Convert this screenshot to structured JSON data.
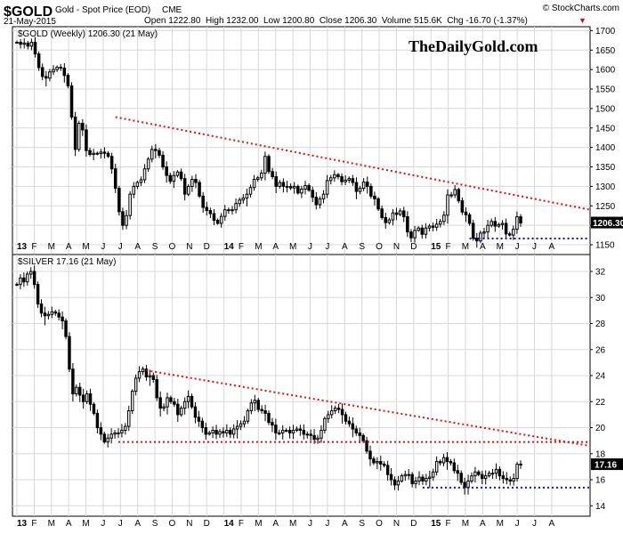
{
  "header": {
    "symbol": "$GOLD",
    "description": "Gold - Spot Price (EOD)",
    "exchange": "CME",
    "watermark": "© StockCharts.com",
    "date": "21-May-2015",
    "ohlc_label": "Open 1222.80  High 1232.00  Low 1200.80  Close 1206.30  Volume 515.6K  Chg -16.70 (-1.37%)",
    "chg_arrow": "▼",
    "brand": "TheDailyGold.com"
  },
  "colors": {
    "trendline": "#e01010",
    "support": "#1010c8",
    "candle": "#000000",
    "grid": "#d8d8d8",
    "label_box": "#000000"
  },
  "chart_data": [
    {
      "type": "candlestick",
      "title": "$GOLD (Weekly) 1206.30 (21 May)",
      "last_value": "1206.30",
      "ylim": [
        1125,
        1710
      ],
      "y_ticks": [
        1150,
        1200,
        1250,
        1300,
        1350,
        1400,
        1450,
        1500,
        1550,
        1600,
        1650,
        1700
      ],
      "x_tick_labels": [
        "13",
        "F",
        "M",
        "A",
        "M",
        "J",
        "J",
        "A",
        "S",
        "O",
        "N",
        "D",
        "14",
        "F",
        "M",
        "A",
        "M",
        "J",
        "J",
        "A",
        "S",
        "O",
        "N",
        "D",
        "15",
        "F",
        "M",
        "A",
        "M",
        "J",
        "J",
        "A"
      ],
      "closes": [
        1670,
        1665,
        1668,
        1660,
        1670,
        1640,
        1605,
        1582,
        1578,
        1594,
        1600,
        1606,
        1604,
        1585,
        1558,
        1478,
        1395,
        1462,
        1445,
        1392,
        1382,
        1385,
        1384,
        1388,
        1385,
        1377,
        1345,
        1295,
        1235,
        1200,
        1225,
        1280,
        1300,
        1310,
        1317,
        1345,
        1370,
        1395,
        1392,
        1380,
        1350,
        1328,
        1313,
        1328,
        1337,
        1320,
        1280,
        1300,
        1318,
        1310,
        1275,
        1246,
        1238,
        1230,
        1213,
        1205,
        1223,
        1240,
        1238,
        1240,
        1256,
        1265,
        1270,
        1280,
        1297,
        1318,
        1322,
        1334,
        1377,
        1338,
        1325,
        1300,
        1310,
        1300,
        1300,
        1296,
        1300,
        1283,
        1293,
        1302,
        1290,
        1272,
        1253,
        1268,
        1280,
        1315,
        1322,
        1330,
        1325,
        1312,
        1316,
        1320,
        1310,
        1287,
        1295,
        1311,
        1300,
        1275,
        1268,
        1242,
        1220,
        1207,
        1214,
        1232,
        1228,
        1237,
        1222,
        1183,
        1168,
        1187,
        1193,
        1177,
        1193,
        1198,
        1195,
        1203,
        1210,
        1226,
        1278,
        1278,
        1292,
        1263,
        1234,
        1227,
        1205,
        1167,
        1160,
        1180,
        1183,
        1200,
        1210,
        1198,
        1202,
        1205,
        1178,
        1175,
        1190,
        1222,
        1206
      ],
      "trendline": {
        "start": {
          "x": 27,
          "y": 1478
        },
        "end": {
          "x": 167,
          "y": 1240
        }
      },
      "support": {
        "start": {
          "x": 124,
          "y": 1166
        },
        "end": {
          "x": 167,
          "y": 1166
        }
      }
    },
    {
      "type": "candlestick",
      "title": "$SILVER 17.16 (21 May)",
      "last_value": "17.16",
      "ylim": [
        13.2,
        33.3
      ],
      "y_ticks": [
        14,
        16,
        18,
        20,
        22,
        24,
        26,
        28,
        30,
        32
      ],
      "x_tick_labels": [
        "13",
        "F",
        "M",
        "A",
        "M",
        "J",
        "J",
        "A",
        "S",
        "O",
        "N",
        "D",
        "14",
        "F",
        "M",
        "A",
        "M",
        "J",
        "J",
        "A",
        "S",
        "O",
        "N",
        "D",
        "15",
        "F",
        "M",
        "A",
        "M",
        "J",
        "J",
        "A"
      ],
      "closes": [
        31.0,
        31.5,
        31.2,
        31.8,
        32.0,
        31.0,
        29.5,
        28.8,
        28.6,
        28.7,
        28.9,
        28.8,
        28.5,
        28.2,
        27.0,
        24.5,
        22.6,
        23.1,
        22.5,
        22.0,
        22.6,
        21.8,
        21.1,
        20.0,
        19.5,
        18.9,
        19.2,
        19.5,
        19.6,
        19.6,
        19.8,
        20.1,
        21.3,
        22.8,
        23.8,
        24.3,
        24.5,
        23.9,
        24.0,
        23.7,
        22.3,
        21.5,
        21.6,
        22.3,
        22.0,
        21.8,
        21.0,
        21.5,
        22.0,
        22.4,
        21.6,
        20.8,
        20.5,
        20.0,
        19.5,
        19.6,
        19.8,
        19.5,
        19.7,
        19.6,
        19.8,
        19.5,
        19.9,
        20.1,
        20.3,
        20.5,
        21.3,
        21.9,
        22.1,
        21.4,
        21.3,
        21.1,
        20.4,
        20.2,
        19.6,
        19.6,
        19.8,
        19.8,
        19.6,
        19.8,
        19.9,
        19.8,
        19.5,
        19.5,
        19.4,
        19.1,
        19.2,
        19.8,
        20.7,
        21.0,
        21.3,
        21.5,
        21.4,
        21.0,
        20.5,
        20.3,
        19.9,
        19.6,
        19.4,
        19.0,
        18.2,
        17.6,
        17.3,
        17.4,
        17.2,
        17.1,
        16.4,
        16.0,
        15.6,
        15.9,
        16.3,
        16.4,
        16.4,
        15.7,
        15.9,
        16.2,
        15.9,
        16.1,
        16.2,
        16.6,
        17.4,
        17.3,
        17.7,
        17.4,
        17.3,
        16.7,
        16.5,
        15.8,
        15.4,
        15.9,
        16.3,
        16.6,
        16.4,
        16.1,
        16.3,
        16.5,
        16.5,
        16.8,
        16.3,
        16.1,
        16.0,
        15.9,
        16.1,
        17.2,
        17.16
      ],
      "trendline": {
        "start": {
          "x": 37,
          "y": 24.4
        },
        "end": {
          "x": 167,
          "y": 18.6
        }
      },
      "resistance": {
        "start": {
          "x": 29,
          "y": 18.9
        },
        "end": {
          "x": 167,
          "y": 18.9
        }
      },
      "support": {
        "start": {
          "x": 116,
          "y": 15.4
        },
        "end": {
          "x": 167,
          "y": 15.4
        }
      }
    }
  ]
}
